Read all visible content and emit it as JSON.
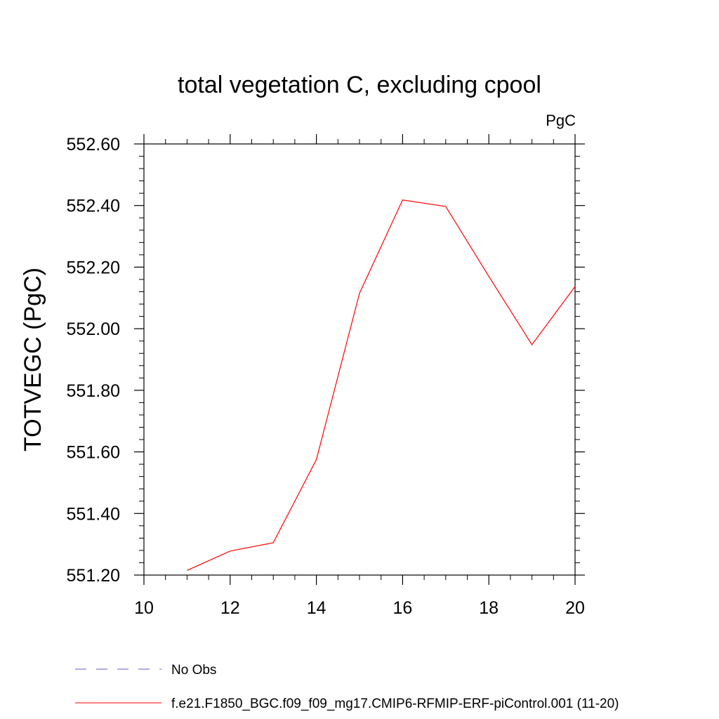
{
  "chart_data": {
    "type": "line",
    "title": "total vegetation C, excluding cpool",
    "units_label": "PgC",
    "xlabel": "",
    "ylabel": "TOTVEGC  (PgC)",
    "xlim": [
      10,
      20
    ],
    "ylim": [
      551.2,
      552.6
    ],
    "xticks": [
      "10",
      "12",
      "14",
      "16",
      "18",
      "20"
    ],
    "yticks": [
      "551.20",
      "551.40",
      "551.60",
      "551.80",
      "552.00",
      "552.20",
      "552.40",
      "552.60"
    ],
    "grid": false,
    "legend_position": "bottom-left",
    "series": [
      {
        "name": "f.e21.F1850_BGC.f09_f09_mg17.CMIP6-RFMIP-ERF-piControl.001 (11-20)",
        "color": "#ff0000",
        "x": [
          11,
          12,
          13,
          14,
          15,
          16,
          17,
          18,
          19,
          20
        ],
        "y": [
          551.215,
          551.278,
          551.305,
          551.575,
          552.115,
          552.418,
          552.397,
          552.17,
          551.948,
          552.137
        ]
      }
    ],
    "legend": [
      {
        "label": "No Obs",
        "color": "#6a5acd",
        "dash": true
      },
      {
        "label": "f.e21.F1850_BGC.f09_f09_mg17.CMIP6-RFMIP-ERF-piControl.001 (11-20)",
        "color": "#ff0000",
        "dash": false
      }
    ]
  }
}
